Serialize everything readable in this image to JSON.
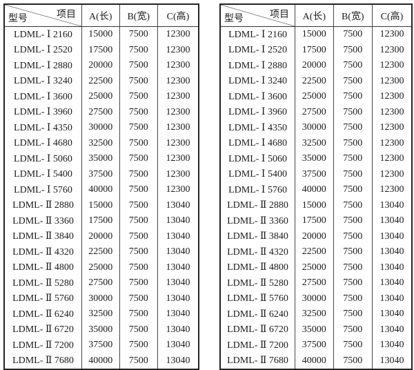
{
  "header": {
    "corner_top": "项目",
    "corner_bottom": "型号",
    "col_a": "A(长)",
    "col_b": "B(宽)",
    "col_c": "C(高)"
  },
  "rows": [
    [
      "LDML- Ⅰ 2160",
      "15000",
      "7500",
      "12300"
    ],
    [
      "LDML- Ⅰ 2520",
      "17500",
      "7500",
      "12300"
    ],
    [
      "LDML- Ⅰ 2880",
      "20000",
      "7500",
      "12300"
    ],
    [
      "LDML- Ⅰ 3240",
      "22500",
      "7500",
      "12300"
    ],
    [
      "LDML- Ⅰ 3600",
      "25000",
      "7500",
      "12300"
    ],
    [
      "LDML- Ⅰ 3960",
      "27500",
      "7500",
      "12300"
    ],
    [
      "LDML- Ⅰ 4350",
      "30000",
      "7500",
      "12300"
    ],
    [
      "LDML- Ⅰ 4680",
      "32500",
      "7500",
      "12300"
    ],
    [
      "LDML- Ⅰ 5060",
      "35000",
      "7500",
      "12300"
    ],
    [
      "LDML- Ⅰ 5400",
      "37500",
      "7500",
      "12300"
    ],
    [
      "LDML- Ⅰ 5760",
      "40000",
      "7500",
      "12300"
    ],
    [
      "LDML- Ⅱ 2880",
      "15000",
      "7500",
      "13040"
    ],
    [
      "LDML- Ⅱ 3360",
      "17500",
      "7500",
      "13040"
    ],
    [
      "LDML- Ⅱ 3840",
      "20000",
      "7500",
      "13040"
    ],
    [
      "LDML- Ⅱ 4320",
      "22500",
      "7500",
      "13040"
    ],
    [
      "LDML- Ⅱ 4800",
      "25000",
      "7500",
      "13040"
    ],
    [
      "LDML- Ⅱ 5280",
      "27500",
      "7500",
      "13040"
    ],
    [
      "LDML- Ⅱ 5760",
      "30000",
      "7500",
      "13040"
    ],
    [
      "LDML- Ⅱ 6240",
      "32500",
      "7500",
      "13040"
    ],
    [
      "LDML- Ⅱ 6720",
      "35000",
      "7500",
      "13040"
    ],
    [
      "LDML- Ⅱ 7200",
      "37500",
      "7500",
      "13040"
    ],
    [
      "LDML- Ⅱ 7680",
      "40000",
      "7500",
      "13040"
    ]
  ]
}
